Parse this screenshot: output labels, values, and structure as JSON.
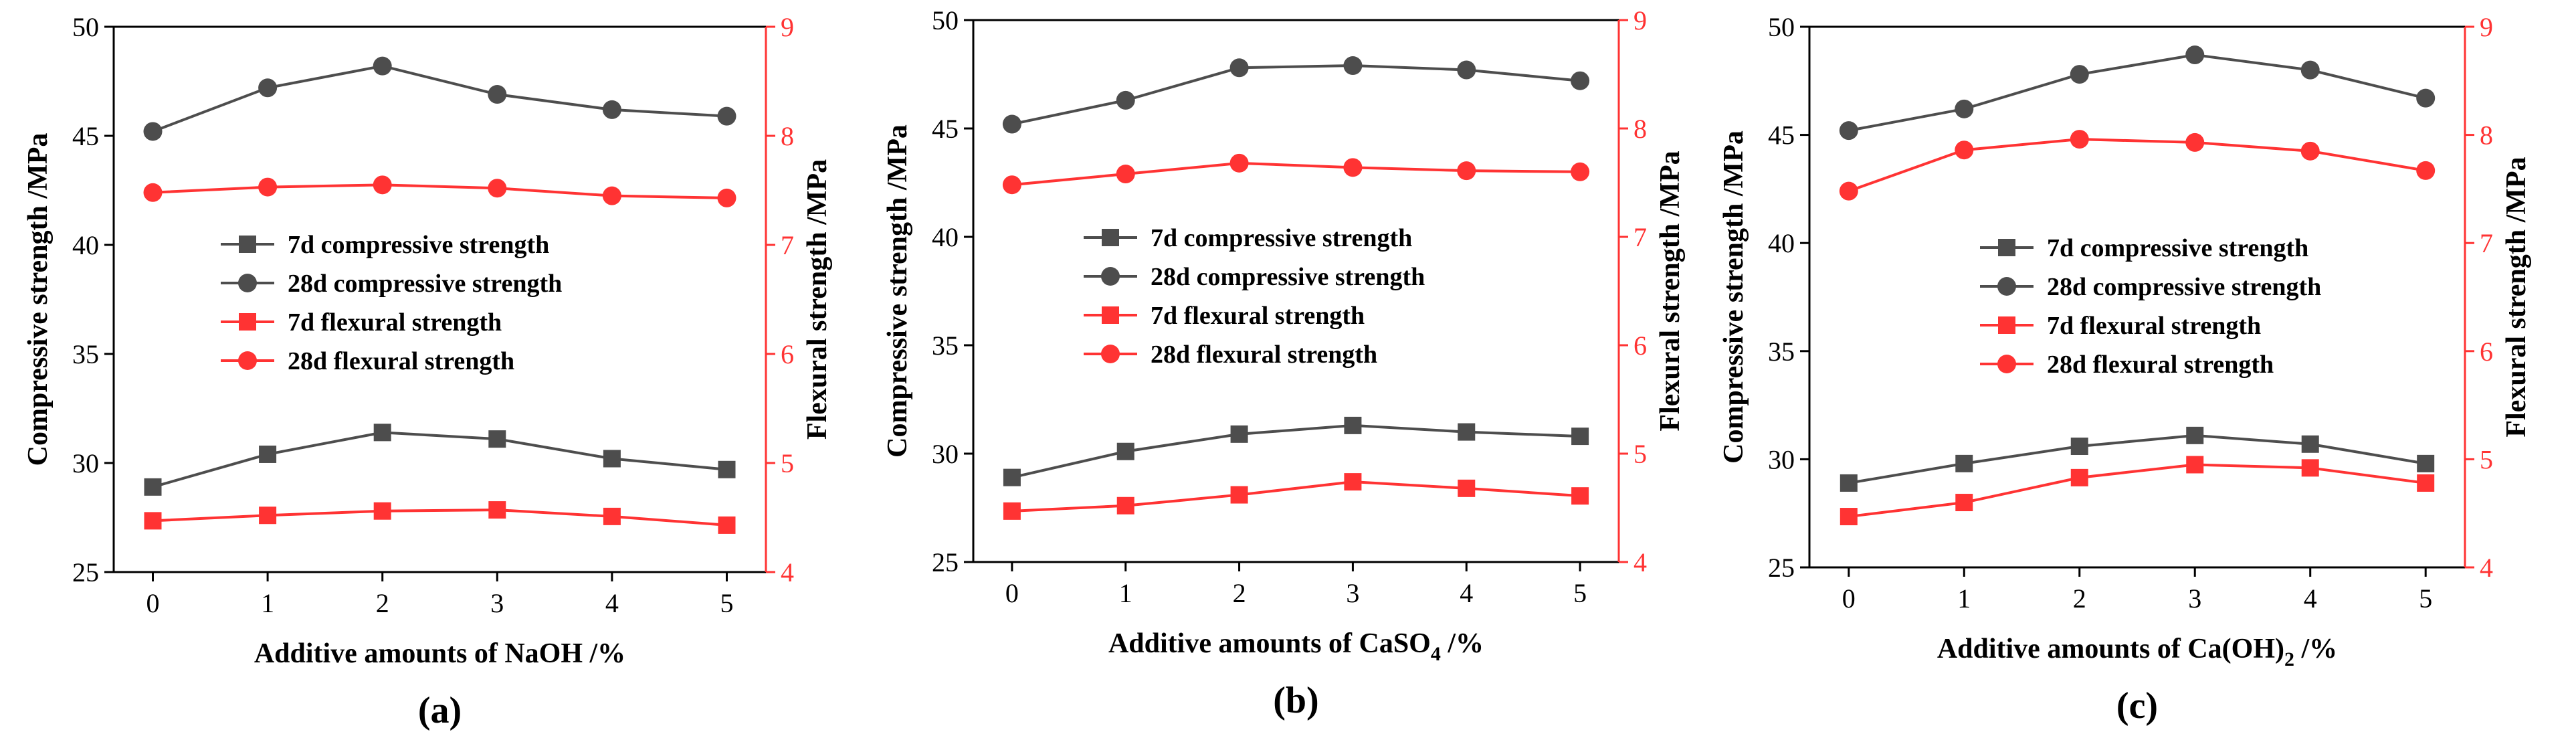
{
  "colors": {
    "compressive": "#4d4d4d",
    "flexural": "#ff3333",
    "axis": "#000000",
    "right_axis": "#ff3333"
  },
  "legend": {
    "entries": [
      {
        "label": "7d compressive  strength",
        "marker": "square",
        "color": "#4d4d4d"
      },
      {
        "label": "28d compressive  strength",
        "marker": "circle",
        "color": "#4d4d4d"
      },
      {
        "label": "7d flexural strength",
        "marker": "square",
        "color": "#ff3333"
      },
      {
        "label": "28d flexural strength",
        "marker": "circle",
        "color": "#ff3333"
      }
    ]
  },
  "chart_data": [
    {
      "type": "line",
      "panel_label": "(a)",
      "xlabel_main": "Additive amounts of NaOH /%",
      "xlabel_sub": "",
      "xlabel_tail": "",
      "ylabel_left": "Compressive strength /MPa",
      "ylabel_right": "Flexural strength /MPa",
      "x": [
        0,
        1,
        2,
        3,
        4,
        5
      ],
      "ylim_left": [
        25,
        50
      ],
      "yticks_left": [
        25,
        30,
        35,
        40,
        45,
        50
      ],
      "ylim_right": [
        4,
        9
      ],
      "yticks_right": [
        4,
        5,
        6,
        7,
        8,
        9
      ],
      "legend_position": "center-left",
      "series": [
        {
          "name": "7d compressive  strength",
          "axis": "left",
          "marker": "square",
          "values": [
            28.9,
            30.4,
            31.4,
            31.1,
            30.2,
            29.7
          ]
        },
        {
          "name": "28d compressive  strength",
          "axis": "left",
          "marker": "circle",
          "values": [
            45.2,
            47.2,
            48.2,
            46.9,
            46.2,
            45.9
          ]
        },
        {
          "name": "7d flexural strength",
          "axis": "right",
          "marker": "square",
          "values": [
            4.47,
            4.52,
            4.56,
            4.57,
            4.51,
            4.43
          ]
        },
        {
          "name": "28d flexural strength",
          "axis": "right",
          "marker": "circle",
          "values": [
            7.48,
            7.53,
            7.55,
            7.52,
            7.45,
            7.43
          ]
        }
      ]
    },
    {
      "type": "line",
      "panel_label": "(b)",
      "xlabel_main": "Additive amounts of CaSO",
      "xlabel_sub": "4",
      "xlabel_tail": " /%",
      "ylabel_left": "Compressive strength /MPa",
      "ylabel_right": "Flexural strength /MPa",
      "x": [
        0,
        1,
        2,
        3,
        4,
        5
      ],
      "ylim_left": [
        25,
        50
      ],
      "yticks_left": [
        25,
        30,
        35,
        40,
        45,
        50
      ],
      "ylim_right": [
        4,
        9
      ],
      "yticks_right": [
        4,
        5,
        6,
        7,
        8,
        9
      ],
      "legend_position": "center-left",
      "series": [
        {
          "name": "7d compressive  strength",
          "axis": "left",
          "marker": "square",
          "values": [
            28.9,
            30.1,
            30.9,
            31.3,
            31.0,
            30.8
          ]
        },
        {
          "name": "28d compressive  strength",
          "axis": "left",
          "marker": "circle",
          "values": [
            45.2,
            46.3,
            47.8,
            47.9,
            47.7,
            47.2
          ]
        },
        {
          "name": "7d flexural strength",
          "axis": "right",
          "marker": "square",
          "values": [
            4.47,
            4.52,
            4.62,
            4.74,
            4.68,
            4.61
          ]
        },
        {
          "name": "28d flexural strength",
          "axis": "right",
          "marker": "circle",
          "values": [
            7.48,
            7.58,
            7.68,
            7.64,
            7.61,
            7.6
          ]
        }
      ]
    },
    {
      "type": "line",
      "panel_label": "(c)",
      "xlabel_main": "Additive amounts of Ca(OH)",
      "xlabel_sub": "2",
      "xlabel_tail": " /%",
      "ylabel_left": "Compressive strength /MPa",
      "ylabel_right": "Flexural strength /MPa",
      "x": [
        0,
        1,
        2,
        3,
        4,
        5
      ],
      "ylim_left": [
        25,
        50
      ],
      "yticks_left": [
        25,
        30,
        35,
        40,
        45,
        50
      ],
      "ylim_right": [
        4,
        9
      ],
      "yticks_right": [
        4,
        5,
        6,
        7,
        8,
        9
      ],
      "legend_position": "center-left",
      "series": [
        {
          "name": "7d compressive  strength",
          "axis": "left",
          "marker": "square",
          "values": [
            28.9,
            29.8,
            30.6,
            31.1,
            30.7,
            29.8
          ]
        },
        {
          "name": "28d compressive  strength",
          "axis": "left",
          "marker": "circle",
          "values": [
            45.2,
            46.2,
            47.8,
            48.7,
            48.0,
            46.7
          ]
        },
        {
          "name": "7d flexural strength",
          "axis": "right",
          "marker": "square",
          "values": [
            4.47,
            4.6,
            4.83,
            4.95,
            4.92,
            4.78
          ]
        },
        {
          "name": "28d flexural strength",
          "axis": "right",
          "marker": "circle",
          "values": [
            7.48,
            7.86,
            7.96,
            7.93,
            7.85,
            7.67
          ]
        }
      ]
    }
  ]
}
